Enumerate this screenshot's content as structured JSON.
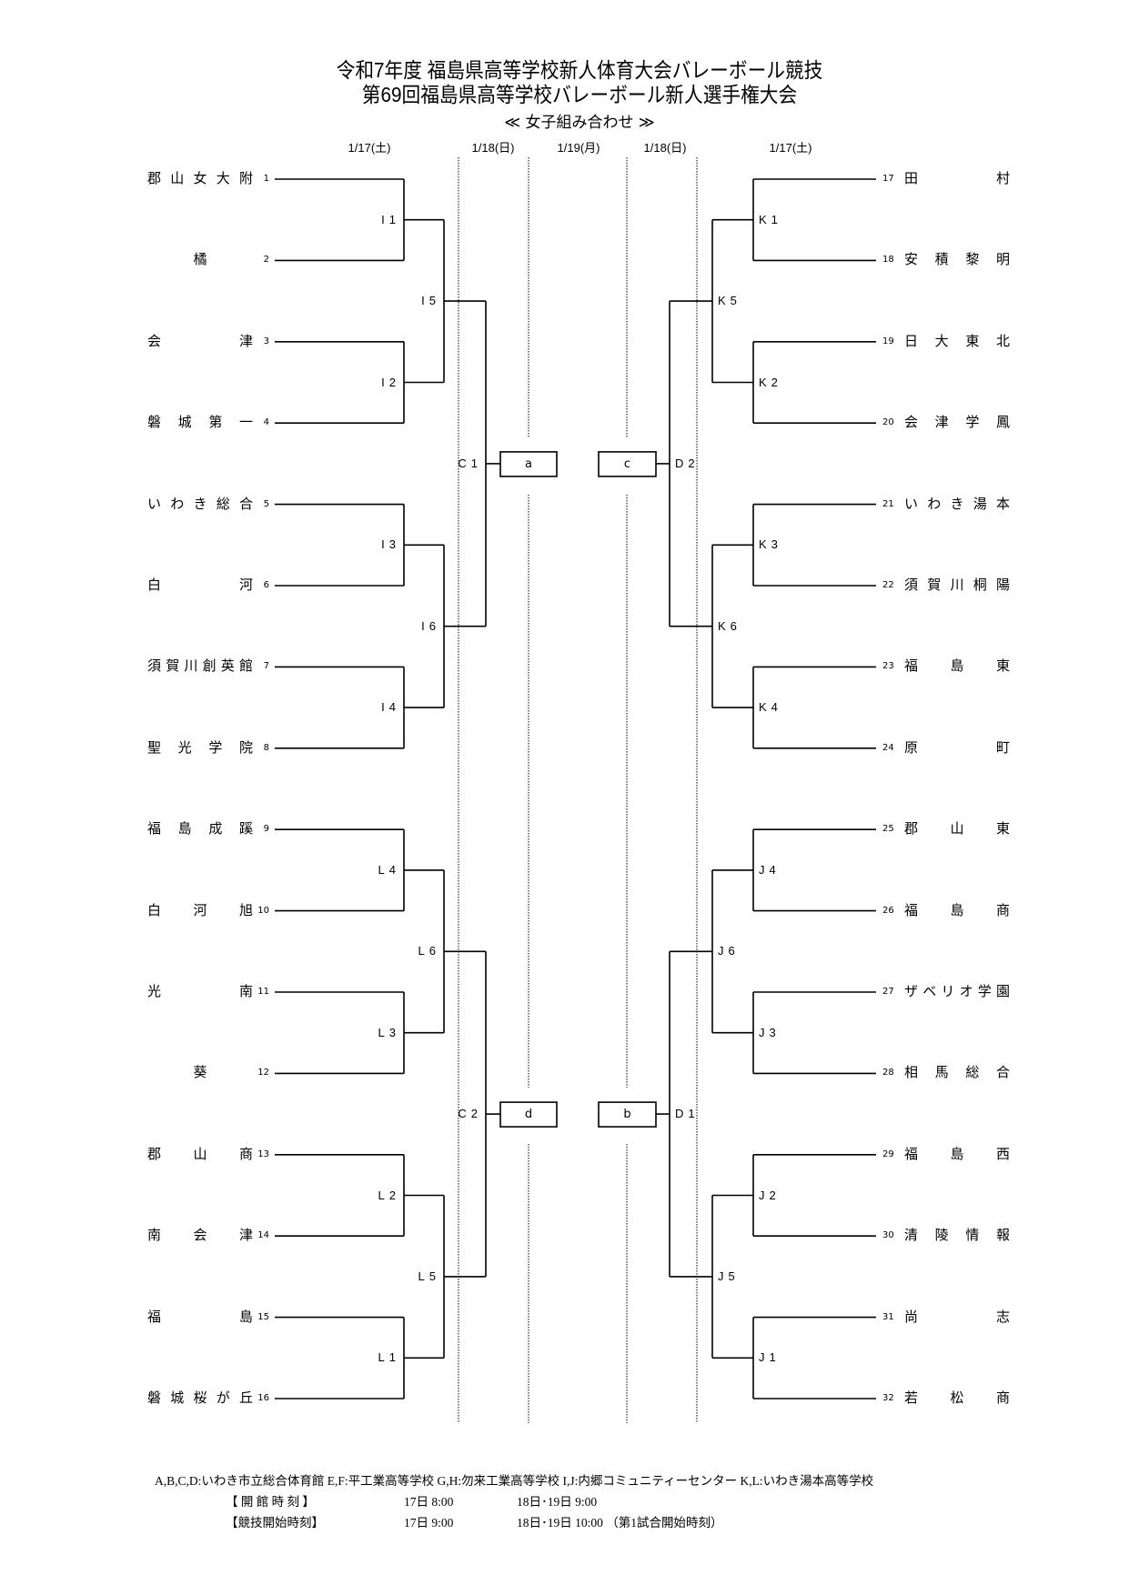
{
  "header": {
    "title_line1": "令和7年度  福島県高等学校新人体育大会バレーボール競技",
    "title_line2": "第69回福島県高等学校バレーボール新人選手権大会",
    "subtitle": "≪ 女子組み合わせ ≫",
    "dates": [
      "1/17(土)",
      "1/18(日)",
      "1/19(月)",
      "1/18(日)",
      "1/17(土)"
    ]
  },
  "left_teams": [
    {
      "no": "1",
      "name": "郡山女大附"
    },
    {
      "no": "2",
      "name": "橘"
    },
    {
      "no": "3",
      "name": "会津"
    },
    {
      "no": "4",
      "name": "磐城第一"
    },
    {
      "no": "5",
      "name": "いわき総合"
    },
    {
      "no": "6",
      "name": "白河"
    },
    {
      "no": "7",
      "name": "須賀川創英館"
    },
    {
      "no": "8",
      "name": "聖光学院"
    },
    {
      "no": "9",
      "name": "福島成蹊"
    },
    {
      "no": "10",
      "name": "白河旭"
    },
    {
      "no": "11",
      "name": "光南"
    },
    {
      "no": "12",
      "name": "葵"
    },
    {
      "no": "13",
      "name": "郡山商"
    },
    {
      "no": "14",
      "name": "南会津"
    },
    {
      "no": "15",
      "name": "福島"
    },
    {
      "no": "16",
      "name": "磐城桜が丘"
    }
  ],
  "right_teams": [
    {
      "no": "17",
      "name": "田村"
    },
    {
      "no": "18",
      "name": "安積黎明"
    },
    {
      "no": "19",
      "name": "日大東北"
    },
    {
      "no": "20",
      "name": "会津学鳳"
    },
    {
      "no": "21",
      "name": "いわき湯本"
    },
    {
      "no": "22",
      "name": "須賀川桐陽"
    },
    {
      "no": "23",
      "name": "福島東"
    },
    {
      "no": "24",
      "name": "原町"
    },
    {
      "no": "25",
      "name": "郡山東"
    },
    {
      "no": "26",
      "name": "福島商"
    },
    {
      "no": "27",
      "name": "ザベリオ学園"
    },
    {
      "no": "28",
      "name": "相馬総合"
    },
    {
      "no": "29",
      "name": "福島西"
    },
    {
      "no": "30",
      "name": "清陵情報"
    },
    {
      "no": "31",
      "name": "尚志"
    },
    {
      "no": "32",
      "name": "若松商"
    }
  ],
  "left_matches": {
    "round1": [
      "I1",
      "I2",
      "I3",
      "I4",
      "L4",
      "L3",
      "L2",
      "L1"
    ],
    "round2": [
      "I5",
      "I6",
      "L6",
      "L5"
    ],
    "round3": [
      "C1",
      "C2"
    ],
    "boxes": [
      "a",
      "d"
    ]
  },
  "right_matches": {
    "round1": [
      "K1",
      "K2",
      "K3",
      "K4",
      "J4",
      "J3",
      "J2",
      "J1"
    ],
    "round2": [
      "K5",
      "K6",
      "J6",
      "J5"
    ],
    "round3": [
      "D2",
      "D1"
    ],
    "boxes": [
      "c",
      "b"
    ]
  },
  "footer": {
    "venues": "A,B,C,D:いわき市立総合体育館  E,F:平工業高等学校  G,H:勿来工業高等学校  I,J:内郷コミュニティーセンター  K,L:いわき湯本高等学校",
    "open_label": "【 開 館 時 刻 】",
    "open_day1": "17日  8:00",
    "open_day2": "18日･19日  9:00",
    "start_label": "【競技開始時刻】",
    "start_day1": "17日  9:00",
    "start_day2": "18日･19日  10:00 （第1試合開始時刻）"
  }
}
